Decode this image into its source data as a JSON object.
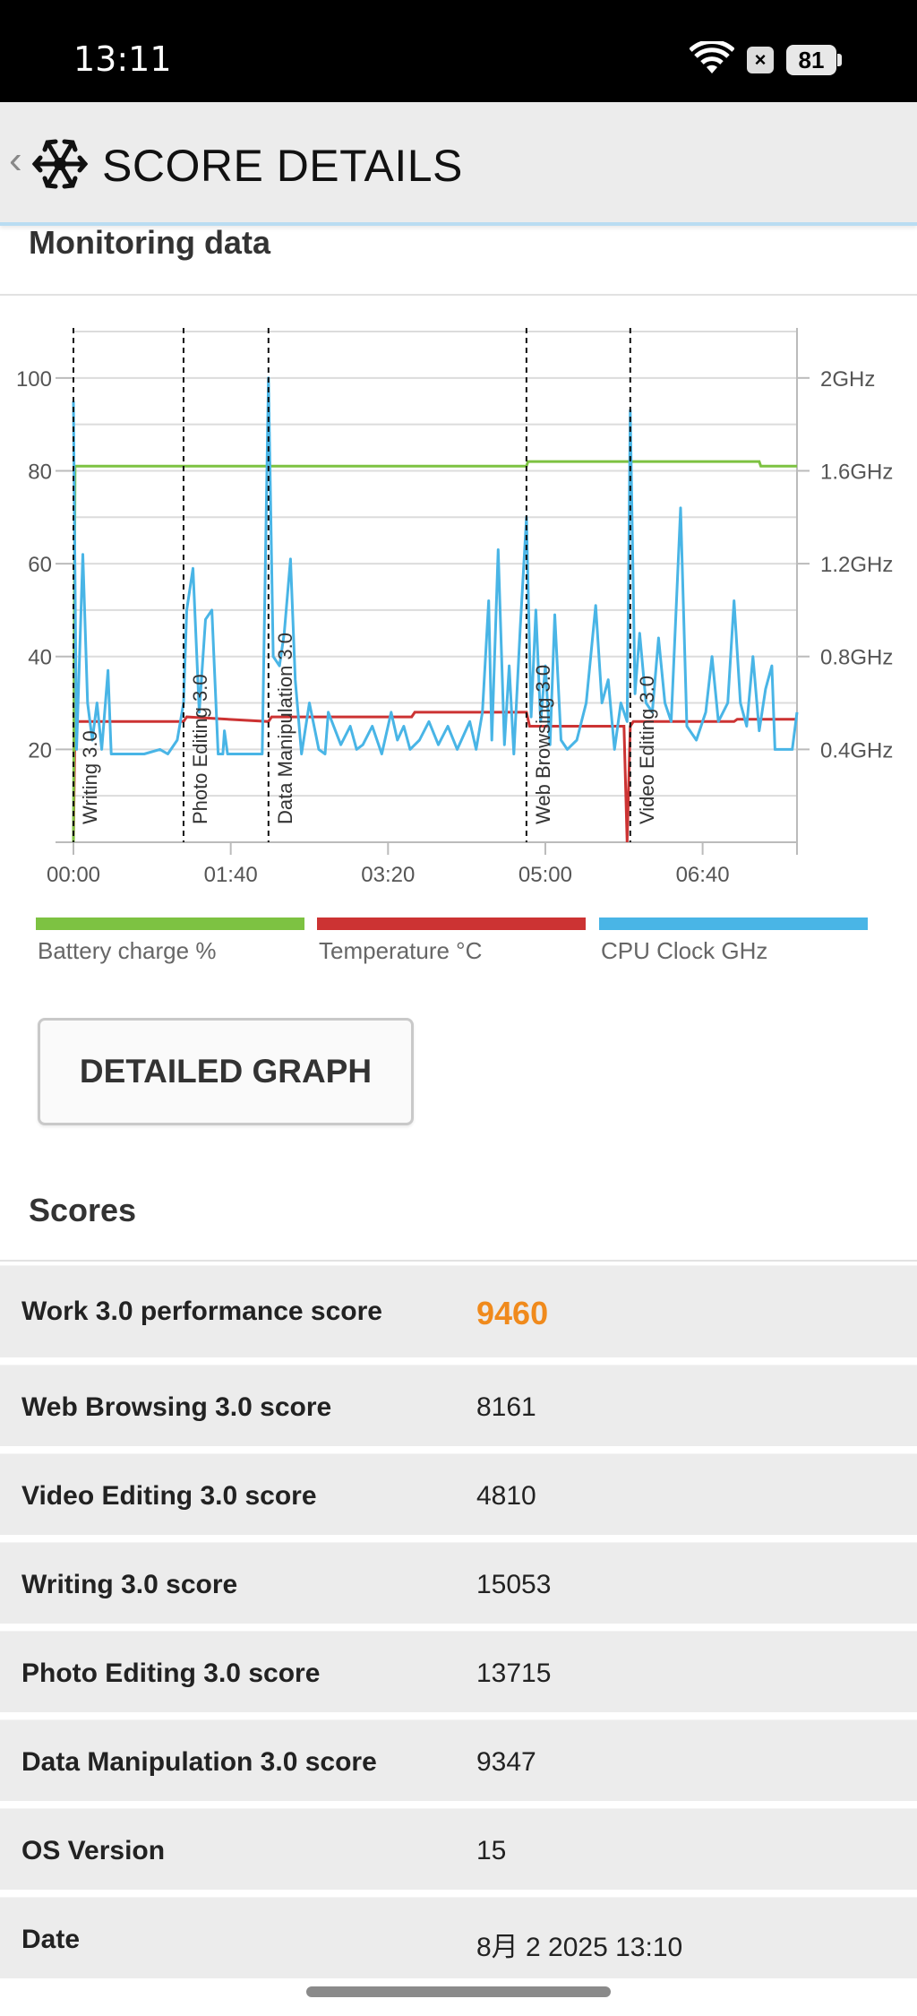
{
  "status": {
    "time": "13:11",
    "battery": "81"
  },
  "header": {
    "title": "SCORE DETAILS"
  },
  "monitoring": {
    "title": "Monitoring data"
  },
  "chart_data": {
    "type": "line",
    "x_ticks": [
      "00:00",
      "01:40",
      "03:20",
      "05:00",
      "06:40"
    ],
    "y_left_ticks": [
      "20",
      "40",
      "60",
      "80",
      "100"
    ],
    "y_right_ticks": [
      "0.4GHz",
      "0.8GHz",
      "1.2GHz",
      "1.6GHz",
      "2GHz"
    ],
    "ylim_left": [
      0,
      110
    ],
    "ylim_right_ghz": [
      0,
      2.2
    ],
    "xlim_seconds": [
      0,
      460
    ],
    "markers": [
      {
        "label": "Writing 3.0",
        "x": 0
      },
      {
        "label": "Photo Editing 3.0",
        "x": 70
      },
      {
        "label": "Data Manipulation 3.0",
        "x": 124
      },
      {
        "label": "Web Browsing 3.0",
        "x": 288
      },
      {
        "label": "Video Editing 3.0",
        "x": 354
      }
    ],
    "series": [
      {
        "name": "Battery charge %",
        "color": "#7dc242",
        "points": [
          [
            0,
            0
          ],
          [
            1,
            81
          ],
          [
            288,
            81
          ],
          [
            289,
            82
          ],
          [
            436,
            82
          ],
          [
            437,
            81
          ],
          [
            460,
            81
          ]
        ]
      },
      {
        "name": "Temperature °C",
        "color": "#cc3333",
        "points": [
          [
            0,
            0
          ],
          [
            1,
            26
          ],
          [
            70,
            26
          ],
          [
            72,
            27
          ],
          [
            124,
            26
          ],
          [
            126,
            27
          ],
          [
            215,
            27
          ],
          [
            217,
            28
          ],
          [
            288,
            28
          ],
          [
            290,
            25
          ],
          [
            350,
            25
          ],
          [
            352,
            0
          ],
          [
            354,
            25
          ],
          [
            356,
            26
          ],
          [
            420,
            26
          ],
          [
            422,
            26.5
          ],
          [
            460,
            26.5
          ]
        ]
      },
      {
        "name": "CPU Clock GHz",
        "color": "#49b5e6",
        "points_pct": [
          [
            0,
            95
          ],
          [
            2,
            20
          ],
          [
            6,
            62
          ],
          [
            9,
            30
          ],
          [
            12,
            22
          ],
          [
            15,
            30
          ],
          [
            18,
            20
          ],
          [
            22,
            37
          ],
          [
            24,
            19
          ],
          [
            35,
            19
          ],
          [
            45,
            19
          ],
          [
            55,
            20
          ],
          [
            60,
            19
          ],
          [
            66,
            22
          ],
          [
            70,
            30
          ],
          [
            72,
            50
          ],
          [
            76,
            59
          ],
          [
            80,
            28
          ],
          [
            84,
            48
          ],
          [
            88,
            50
          ],
          [
            92,
            19
          ],
          [
            95,
            19
          ],
          [
            96,
            24
          ],
          [
            98,
            19
          ],
          [
            120,
            19
          ],
          [
            124,
            100
          ],
          [
            127,
            40
          ],
          [
            131,
            38
          ],
          [
            134,
            45
          ],
          [
            138,
            61
          ],
          [
            141,
            35
          ],
          [
            145,
            19
          ],
          [
            150,
            30
          ],
          [
            156,
            20
          ],
          [
            160,
            19
          ],
          [
            162,
            28
          ],
          [
            170,
            21
          ],
          [
            176,
            25
          ],
          [
            180,
            20
          ],
          [
            184,
            21
          ],
          [
            190,
            25
          ],
          [
            196,
            19
          ],
          [
            202,
            28
          ],
          [
            206,
            22
          ],
          [
            210,
            25
          ],
          [
            214,
            20
          ],
          [
            220,
            22
          ],
          [
            226,
            26
          ],
          [
            232,
            21
          ],
          [
            238,
            25
          ],
          [
            244,
            20
          ],
          [
            252,
            26
          ],
          [
            256,
            20
          ],
          [
            260,
            28
          ],
          [
            264,
            52
          ],
          [
            266,
            22
          ],
          [
            270,
            63
          ],
          [
            274,
            21
          ],
          [
            277,
            38
          ],
          [
            280,
            19
          ],
          [
            284,
            46
          ],
          [
            288,
            70
          ],
          [
            291,
            27
          ],
          [
            294,
            50
          ],
          [
            297,
            26
          ],
          [
            300,
            38
          ],
          [
            303,
            21
          ],
          [
            306,
            49
          ],
          [
            310,
            22
          ],
          [
            314,
            20
          ],
          [
            320,
            22
          ],
          [
            326,
            30
          ],
          [
            332,
            51
          ],
          [
            336,
            30
          ],
          [
            340,
            35
          ],
          [
            344,
            20
          ],
          [
            348,
            30
          ],
          [
            352,
            26
          ],
          [
            354,
            93
          ],
          [
            357,
            32
          ],
          [
            360,
            45
          ],
          [
            364,
            30
          ],
          [
            368,
            28
          ],
          [
            372,
            44
          ],
          [
            376,
            30
          ],
          [
            380,
            26
          ],
          [
            386,
            72
          ],
          [
            390,
            25
          ],
          [
            396,
            22
          ],
          [
            402,
            28
          ],
          [
            406,
            40
          ],
          [
            410,
            26
          ],
          [
            416,
            30
          ],
          [
            420,
            52
          ],
          [
            424,
            30
          ],
          [
            428,
            25
          ],
          [
            432,
            40
          ],
          [
            436,
            24
          ],
          [
            440,
            33
          ],
          [
            444,
            38
          ],
          [
            446,
            20
          ],
          [
            452,
            20
          ],
          [
            457,
            20
          ],
          [
            460,
            28
          ]
        ]
      }
    ]
  },
  "legend": {
    "battery": "Battery charge %",
    "temperature": "Temperature °C",
    "cpu": "CPU Clock GHz"
  },
  "buttons": {
    "detailed_graph": "DETAILED GRAPH"
  },
  "scores": {
    "title": "Scores",
    "rows": [
      {
        "label": "Work 3.0 performance score",
        "value": "9460"
      },
      {
        "label": "Web Browsing 3.0 score",
        "value": "8161"
      },
      {
        "label": "Video Editing 3.0 score",
        "value": "4810"
      },
      {
        "label": "Writing 3.0 score",
        "value": "15053"
      },
      {
        "label": "Photo Editing 3.0 score",
        "value": "13715"
      },
      {
        "label": "Data Manipulation 3.0 score",
        "value": "9347"
      },
      {
        "label": "OS Version",
        "value": "15"
      },
      {
        "label": "Date",
        "value": "8月 2 2025 13:10"
      }
    ]
  },
  "colors": {
    "accent": "#f08a1c",
    "battery": "#7dc242",
    "temperature": "#cc3333",
    "cpu": "#49b5e6"
  }
}
